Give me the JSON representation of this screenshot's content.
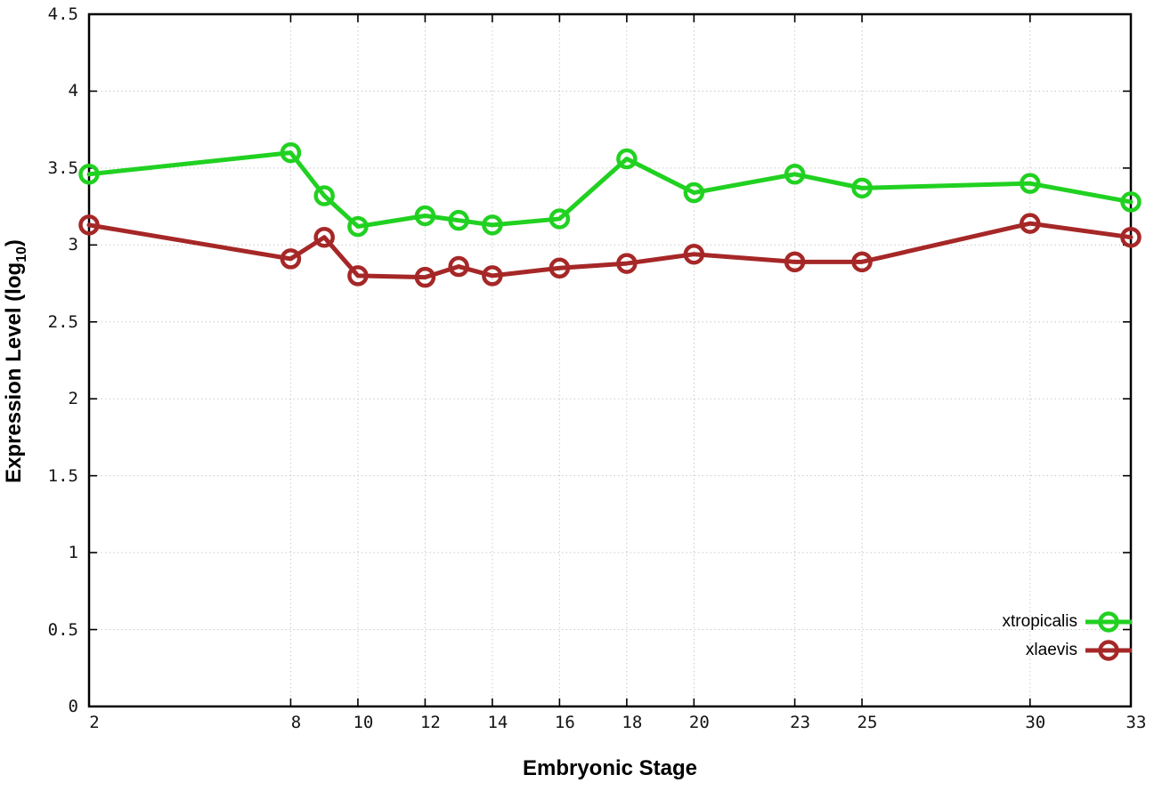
{
  "x_axis": {
    "title": "Embryonic Stage",
    "tick_labels": [
      "2",
      "8",
      "10",
      "12",
      "14",
      "16",
      "18",
      "20",
      "23",
      "25",
      "30",
      "33"
    ]
  },
  "y_axis": {
    "title_pre": "Expression Level (log",
    "title_sub": "10",
    "title_post": ")",
    "tick_labels": [
      "0",
      "0.5",
      "1",
      "1.5",
      "2",
      "2.5",
      "3",
      "3.5",
      "4",
      "4.5"
    ]
  },
  "legend": {
    "entries": [
      "xtropicalis",
      "xlaevis"
    ]
  },
  "colors": {
    "xtropicalis": "#21d121",
    "xlaevis": "#a62727",
    "grid": "#c9c9c9",
    "border": "#000000"
  },
  "chart_data": {
    "type": "line",
    "title": "",
    "xlabel": "Embryonic Stage",
    "ylabel": "Expression Level (log10)",
    "x": [
      2,
      8,
      9,
      10,
      12,
      13,
      14,
      16,
      18,
      20,
      23,
      25,
      30,
      33
    ],
    "series": [
      {
        "name": "xtropicalis",
        "color": "#21d121",
        "marker": "open-circle",
        "values": [
          3.46,
          3.6,
          3.32,
          3.12,
          3.19,
          3.16,
          3.13,
          3.17,
          3.56,
          3.34,
          3.46,
          3.37,
          3.4,
          3.28
        ]
      },
      {
        "name": "xlaevis",
        "color": "#a62727",
        "marker": "open-circle",
        "values": [
          3.13,
          2.91,
          3.05,
          2.8,
          2.79,
          2.86,
          2.8,
          2.85,
          2.88,
          2.94,
          2.89,
          2.89,
          3.14,
          3.05
        ]
      }
    ],
    "xlim": [
      2,
      33
    ],
    "ylim": [
      0,
      4.5
    ],
    "x_ticks": [
      {
        "label": "2",
        "value": 2
      },
      {
        "label": "8",
        "value": 8
      },
      {
        "label": "10",
        "value": 10
      },
      {
        "label": "12",
        "value": 12
      },
      {
        "label": "14",
        "value": 14
      },
      {
        "label": "16",
        "value": 16
      },
      {
        "label": "18",
        "value": 18
      },
      {
        "label": "20",
        "value": 20
      },
      {
        "label": "23",
        "value": 23
      },
      {
        "label": "25",
        "value": 25
      },
      {
        "label": "30",
        "value": 30
      },
      {
        "label": "33",
        "value": 33
      }
    ],
    "y_ticks": [
      {
        "label": "0",
        "value": 0
      },
      {
        "label": "0.5",
        "value": 0.5
      },
      {
        "label": "1",
        "value": 1
      },
      {
        "label": "1.5",
        "value": 1.5
      },
      {
        "label": "2",
        "value": 2
      },
      {
        "label": "2.5",
        "value": 2.5
      },
      {
        "label": "3",
        "value": 3
      },
      {
        "label": "3.5",
        "value": 3.5
      },
      {
        "label": "4",
        "value": 4
      },
      {
        "label": "4.5",
        "value": 4.5
      }
    ],
    "grid": true,
    "grid_style": "dotted",
    "legend_position": "bottom-right"
  }
}
